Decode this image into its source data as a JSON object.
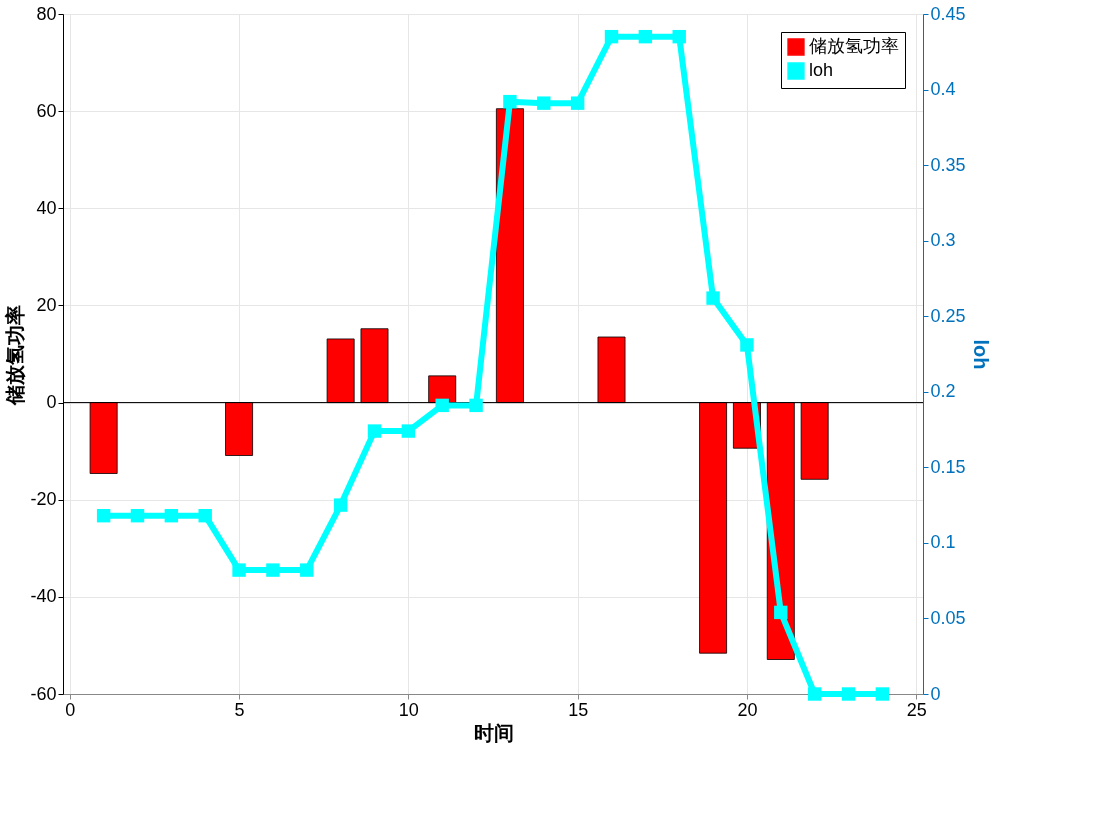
{
  "chart_data": {
    "type": "bar",
    "xlabel": "时间",
    "ylabel": "储放氢功率",
    "y2label": "loh",
    "x": [
      1,
      2,
      3,
      4,
      5,
      6,
      7,
      8,
      9,
      10,
      11,
      12,
      13,
      14,
      15,
      16,
      17,
      18,
      19,
      20,
      21,
      22,
      23,
      24
    ],
    "series": [
      {
        "name": "储放氢功率",
        "color": "#ff0000",
        "values": [
          -14.6,
          0,
          0,
          0,
          -10.9,
          0,
          0,
          13.1,
          15.2,
          0,
          5.5,
          0,
          60.5,
          0,
          0,
          13.5,
          0,
          0,
          -51.6,
          -9.4,
          -52.9,
          -15.8,
          0,
          0
        ]
      },
      {
        "name": "loh",
        "type": "line",
        "axis": "y2",
        "color": "#00ffff",
        "marker": "square",
        "values": [
          0.118,
          0.118,
          0.118,
          0.118,
          0.082,
          0.082,
          0.082,
          0.125,
          0.174,
          0.174,
          0.191,
          0.191,
          0.392,
          0.391,
          0.391,
          0.435,
          0.435,
          0.435,
          0.262,
          0.231,
          0.054,
          0,
          0,
          0
        ]
      }
    ],
    "xlim": [
      -0.2,
      25.2
    ],
    "xticks": [
      0,
      5,
      10,
      15,
      20,
      25
    ],
    "ylim": [
      -60,
      80
    ],
    "yticks": [
      -60,
      -40,
      -20,
      0,
      20,
      40,
      60,
      80
    ],
    "y2lim": [
      0,
      0.45
    ],
    "y2ticks": [
      0,
      0.05,
      0.1,
      0.15,
      0.2,
      0.25,
      0.3,
      0.35,
      0.4,
      0.45
    ],
    "ref_lines": [
      {
        "axis": "y",
        "value": 0,
        "color": "#000000"
      }
    ],
    "grid": true,
    "legend": "top right"
  }
}
